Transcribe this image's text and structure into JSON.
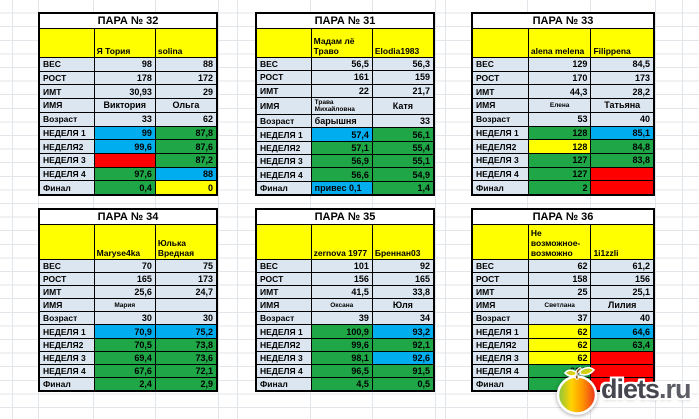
{
  "colors": {
    "plain": "#dce6f1",
    "yellow": "#ffff00",
    "green": "#1fa646",
    "blue": "#00aeef",
    "red": "#ff0000",
    "grid": "#e2e5ea",
    "logo_dark": "#45464e",
    "logo_light": "#5c5d65"
  },
  "logo": {
    "text": "diets",
    "suffix": ".ru"
  },
  "tables": [
    {
      "title": "ПАРА № 32",
      "players": [
        "Я Тория",
        "solina"
      ],
      "rows": [
        {
          "label": "ВЕС",
          "cells": [
            {
              "v": "98"
            },
            {
              "v": "88"
            }
          ]
        },
        {
          "label": "РОСТ",
          "cells": [
            {
              "v": "178"
            },
            {
              "v": "172"
            }
          ]
        },
        {
          "label": "ИМТ",
          "cells": [
            {
              "v": "30,93"
            },
            {
              "v": "29"
            }
          ]
        },
        {
          "label": "ИМЯ",
          "cells": [
            {
              "v": "Виктория",
              "a": "c"
            },
            {
              "v": "Ольга",
              "a": "c"
            }
          ]
        },
        {
          "label": "Возраст",
          "cells": [
            {
              "v": "33"
            },
            {
              "v": "62"
            }
          ]
        },
        {
          "label": "НЕДЕЛЯ 1",
          "cells": [
            {
              "v": "99",
              "f": "blue"
            },
            {
              "v": "87,8",
              "f": "green"
            }
          ]
        },
        {
          "label": "НЕДЕЛЯ2",
          "cells": [
            {
              "v": "99,6",
              "f": "blue"
            },
            {
              "v": "87,6",
              "f": "green"
            }
          ]
        },
        {
          "label": "НЕДЕЛЯ 3",
          "cells": [
            {
              "v": "",
              "f": "red"
            },
            {
              "v": "87,2",
              "f": "green"
            }
          ]
        },
        {
          "label": "НЕДЕЛЯ 4",
          "cells": [
            {
              "v": "97,6",
              "f": "green"
            },
            {
              "v": "88",
              "f": "blue"
            }
          ]
        },
        {
          "label": "Финал",
          "cells": [
            {
              "v": "0,4",
              "f": "green"
            },
            {
              "v": "0",
              "f": "yellow"
            }
          ]
        }
      ]
    },
    {
      "title": "ПАРА № 31",
      "players": [
        "Мадам лё Траво",
        "Elodia1983"
      ],
      "rows": [
        {
          "label": "ВЕС",
          "cells": [
            {
              "v": "56,5"
            },
            {
              "v": "56,3"
            }
          ]
        },
        {
          "label": "РОСТ",
          "cells": [
            {
              "v": "161"
            },
            {
              "v": "159"
            }
          ]
        },
        {
          "label": "ИМТ",
          "cells": [
            {
              "v": "22"
            },
            {
              "v": "21,7"
            }
          ]
        },
        {
          "label": "ИМЯ",
          "cells": [
            {
              "v": "Трава Михайловна",
              "a": "c",
              "s": 1
            },
            {
              "v": "Катя",
              "a": "c"
            }
          ]
        },
        {
          "label": "Возраст",
          "cells": [
            {
              "v": "барышня",
              "a": "l"
            },
            {
              "v": "33"
            }
          ]
        },
        {
          "label": "НЕДЕЛЯ 1",
          "cells": [
            {
              "v": "57,4",
              "f": "blue"
            },
            {
              "v": "56,1",
              "f": "green"
            }
          ]
        },
        {
          "label": "НЕДЕЛЯ2",
          "cells": [
            {
              "v": "57,1",
              "f": "green"
            },
            {
              "v": "55,4",
              "f": "green"
            }
          ]
        },
        {
          "label": "НЕДЕЛЯ 3",
          "cells": [
            {
              "v": "56,9",
              "f": "green"
            },
            {
              "v": "55,1",
              "f": "green"
            }
          ]
        },
        {
          "label": "НЕДЕЛЯ 4",
          "cells": [
            {
              "v": "56,6",
              "f": "green"
            },
            {
              "v": "54,9",
              "f": "green"
            }
          ]
        },
        {
          "label": "Финал",
          "cells": [
            {
              "v": "привес 0,1",
              "f": "blue",
              "a": "l"
            },
            {
              "v": "1,4",
              "f": "green"
            }
          ]
        }
      ]
    },
    {
      "title": "ПАРА № 33",
      "players": [
        "alena melena",
        "Filippena"
      ],
      "rows": [
        {
          "label": "ВЕС",
          "cells": [
            {
              "v": "129"
            },
            {
              "v": "84,5"
            }
          ]
        },
        {
          "label": "РОСТ",
          "cells": [
            {
              "v": "170"
            },
            {
              "v": "173"
            }
          ]
        },
        {
          "label": "ИМТ",
          "cells": [
            {
              "v": "44,3"
            },
            {
              "v": "28,2"
            }
          ]
        },
        {
          "label": "ИМЯ",
          "cells": [
            {
              "v": "Елена",
              "a": "c",
              "s": 1
            },
            {
              "v": "Татьяна",
              "a": "c"
            }
          ]
        },
        {
          "label": "Возраст",
          "cells": [
            {
              "v": "53"
            },
            {
              "v": "40"
            }
          ]
        },
        {
          "label": "НЕДЕЛЯ 1",
          "cells": [
            {
              "v": "128",
              "f": "green"
            },
            {
              "v": "85,1",
              "f": "blue"
            }
          ]
        },
        {
          "label": "НЕДЕЛЯ2",
          "cells": [
            {
              "v": "128",
              "f": "yellow"
            },
            {
              "v": "84,8",
              "f": "green"
            }
          ]
        },
        {
          "label": "НЕДЕЛЯ 3",
          "cells": [
            {
              "v": "127",
              "f": "green"
            },
            {
              "v": "83,8",
              "f": "green"
            }
          ]
        },
        {
          "label": "НЕДЕЛЯ 4",
          "cells": [
            {
              "v": "127",
              "f": "green"
            },
            {
              "v": "",
              "f": "red"
            }
          ]
        },
        {
          "label": "Финал",
          "cells": [
            {
              "v": "2",
              "f": "green"
            },
            {
              "v": "",
              "f": "red"
            }
          ]
        }
      ]
    },
    {
      "title": "ПАРА № 34",
      "players": [
        "Maryse4ka",
        "Юлька Вредная"
      ],
      "rows": [
        {
          "label": "ВЕС",
          "cells": [
            {
              "v": "70"
            },
            {
              "v": "75"
            }
          ]
        },
        {
          "label": "РОСТ",
          "cells": [
            {
              "v": "165"
            },
            {
              "v": "173"
            }
          ]
        },
        {
          "label": "ИМТ",
          "cells": [
            {
              "v": "25,6"
            },
            {
              "v": "24,7"
            }
          ]
        },
        {
          "label": "ИМЯ",
          "cells": [
            {
              "v": "Мария",
              "a": "c",
              "s": 1
            },
            {
              "v": ""
            }
          ]
        },
        {
          "label": "Возраст",
          "cells": [
            {
              "v": "30"
            },
            {
              "v": "30"
            }
          ]
        },
        {
          "label": "НЕДЕЛЯ 1",
          "cells": [
            {
              "v": "70,9",
              "f": "blue"
            },
            {
              "v": "75,2",
              "f": "blue"
            }
          ]
        },
        {
          "label": "НЕДЕЛЯ2",
          "cells": [
            {
              "v": "70,5",
              "f": "green"
            },
            {
              "v": "73,8",
              "f": "green"
            }
          ]
        },
        {
          "label": "НЕДЕЛЯ 3",
          "cells": [
            {
              "v": "69,4",
              "f": "green"
            },
            {
              "v": "73,6",
              "f": "green"
            }
          ]
        },
        {
          "label": "НЕДЕЛЯ 4",
          "cells": [
            {
              "v": "67,6",
              "f": "green"
            },
            {
              "v": "72,1",
              "f": "green"
            }
          ]
        },
        {
          "label": "Финал",
          "cells": [
            {
              "v": "2,4",
              "f": "green"
            },
            {
              "v": "2,9",
              "f": "green"
            }
          ]
        }
      ]
    },
    {
      "title": "ПАРА № 35",
      "players": [
        "zernova 1977",
        "Бреннан03"
      ],
      "rows": [
        {
          "label": "ВЕС",
          "cells": [
            {
              "v": "101"
            },
            {
              "v": "92"
            }
          ]
        },
        {
          "label": "РОСТ",
          "cells": [
            {
              "v": "156"
            },
            {
              "v": "165"
            }
          ]
        },
        {
          "label": "ИМТ",
          "cells": [
            {
              "v": "41,5"
            },
            {
              "v": "33,8"
            }
          ]
        },
        {
          "label": "ИМЯ",
          "cells": [
            {
              "v": "Оксана",
              "a": "c",
              "s": 1
            },
            {
              "v": "Юля",
              "a": "c"
            }
          ]
        },
        {
          "label": "Возраст",
          "cells": [
            {
              "v": "39"
            },
            {
              "v": "34"
            }
          ]
        },
        {
          "label": "НЕДЕЛЯ 1",
          "cells": [
            {
              "v": "100,9",
              "f": "green"
            },
            {
              "v": "93,2",
              "f": "blue"
            }
          ]
        },
        {
          "label": "НЕДЕЛЯ2",
          "cells": [
            {
              "v": "99,6",
              "f": "green"
            },
            {
              "v": "92,1",
              "f": "green"
            }
          ]
        },
        {
          "label": "НЕДЕЛЯ 3",
          "cells": [
            {
              "v": "98,1",
              "f": "green"
            },
            {
              "v": "92,6",
              "f": "blue"
            }
          ]
        },
        {
          "label": "НЕДЕЛЯ 4",
          "cells": [
            {
              "v": "96,5",
              "f": "green"
            },
            {
              "v": "91,5",
              "f": "green"
            }
          ]
        },
        {
          "label": "Финал",
          "cells": [
            {
              "v": "4,5",
              "f": "green"
            },
            {
              "v": "0,5",
              "f": "green"
            }
          ]
        }
      ]
    },
    {
      "title": "ПАРА № 36",
      "players": [
        "Не возможное-возможно",
        "1i1zzli"
      ],
      "rows": [
        {
          "label": "ВЕС",
          "cells": [
            {
              "v": "62"
            },
            {
              "v": "61,2"
            }
          ]
        },
        {
          "label": "РОСТ",
          "cells": [
            {
              "v": "158"
            },
            {
              "v": "156"
            }
          ]
        },
        {
          "label": "ИМТ",
          "cells": [
            {
              "v": "25"
            },
            {
              "v": "25,1"
            }
          ]
        },
        {
          "label": "ИМЯ",
          "cells": [
            {
              "v": "Светлана",
              "a": "c",
              "s": 1
            },
            {
              "v": "Лилия",
              "a": "c"
            }
          ]
        },
        {
          "label": "Возраст",
          "cells": [
            {
              "v": "37"
            },
            {
              "v": "40"
            }
          ]
        },
        {
          "label": "НЕДЕЛЯ 1",
          "cells": [
            {
              "v": "62",
              "f": "yellow"
            },
            {
              "v": "64,6",
              "f": "blue"
            }
          ]
        },
        {
          "label": "НЕДЕЛЯ2",
          "cells": [
            {
              "v": "62",
              "f": "yellow"
            },
            {
              "v": "63,4",
              "f": "green"
            }
          ]
        },
        {
          "label": "НЕДЕЛЯ 3",
          "cells": [
            {
              "v": "62",
              "f": "yellow"
            },
            {
              "v": "",
              "f": "red"
            }
          ]
        },
        {
          "label": "НЕДЕЛЯ 4",
          "cells": [
            {
              "v": "61,7",
              "f": "green"
            },
            {
              "v": "",
              "f": "red"
            }
          ]
        },
        {
          "label": "Финал",
          "cells": [
            {
              "v": "0,",
              "f": "green"
            },
            {
              "v": "",
              "f": "red"
            }
          ]
        }
      ]
    }
  ]
}
